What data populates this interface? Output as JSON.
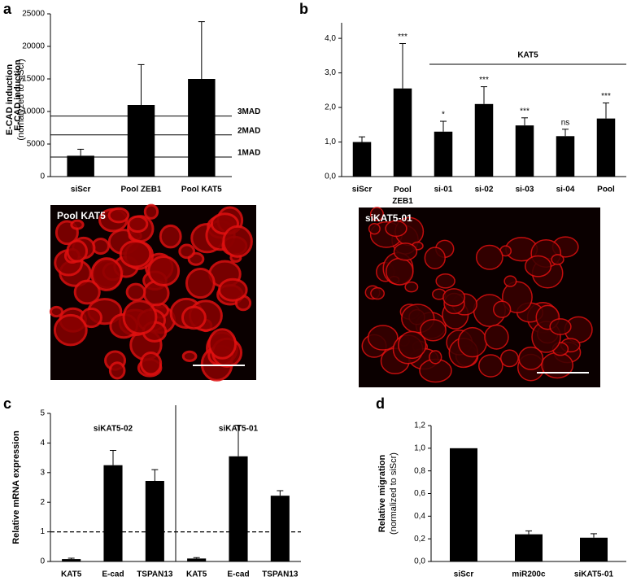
{
  "chart_data": [
    {
      "type": "bar",
      "panel": "a",
      "ylabel": "E-CAD induction",
      "categories": [
        "siScr",
        "Pool ZEB1",
        "Pool KAT5"
      ],
      "values": [
        3200,
        11000,
        15000
      ],
      "errors": [
        1000,
        6200,
        8800
      ],
      "color": "#000000",
      "ylim": [
        0,
        25000
      ],
      "yticks": [
        0,
        5000,
        10000,
        15000,
        20000,
        25000
      ],
      "hlines": [
        {
          "value": 3000,
          "label": "1MAD"
        },
        {
          "value": 6400,
          "label": "2MAD"
        },
        {
          "value": 9300,
          "label": "3MAD"
        }
      ]
    },
    {
      "type": "bar",
      "panel": "b",
      "ylabel": "E-CAD induction",
      "ylabel2": "(nomalyzed to siScr)",
      "categories": [
        "siScr",
        "Pool ZEB1",
        "si-01",
        "si-02",
        "si-03",
        "si-04",
        "Pool"
      ],
      "values": [
        1.0,
        2.55,
        1.3,
        2.1,
        1.48,
        1.17,
        1.68
      ],
      "errors": [
        0.15,
        1.3,
        0.3,
        0.5,
        0.22,
        0.2,
        0.45
      ],
      "value_labels": [
        null,
        "***",
        "*",
        "***",
        "***",
        "ns",
        "***"
      ],
      "color": "#000000",
      "ylim": [
        0,
        4.45
      ],
      "yticks": [
        {
          "value": 0,
          "label": "0,0"
        },
        {
          "value": 1,
          "label": "1,0"
        },
        {
          "value": 2,
          "label": "2,0"
        },
        {
          "value": 3,
          "label": "3,0"
        },
        {
          "value": 4,
          "label": "4,0"
        }
      ],
      "annotation": {
        "text": "KAT5",
        "span": [
          "si-01",
          "Pool"
        ]
      }
    },
    {
      "type": "bar",
      "panel": "c",
      "ylabel": "Relative mRNA expression",
      "categories": [
        "KAT5",
        "E-cad",
        "TSPAN13",
        "KAT5",
        "E-cad",
        "TSPAN13"
      ],
      "values": [
        0.08,
        3.25,
        2.72,
        0.1,
        3.55,
        2.22
      ],
      "errors": [
        0.03,
        0.5,
        0.38,
        0.03,
        1.05,
        0.17
      ],
      "color": "#000000",
      "ylim": [
        0,
        5
      ],
      "yticks": [
        0,
        1,
        2,
        3,
        4,
        5
      ],
      "hlines": [
        {
          "value": 1,
          "style": "dashed"
        }
      ],
      "groups": [
        {
          "label": "siKAT5-02",
          "size": 3
        },
        {
          "label": "siKAT5-01",
          "size": 3
        }
      ]
    },
    {
      "type": "bar",
      "panel": "d",
      "ylabel": "Relative migration",
      "ylabel2": "(normalized to siScr)",
      "categories": [
        "siScr",
        "miR200c",
        "siKAT5-01"
      ],
      "values": [
        1.0,
        0.24,
        0.21
      ],
      "errors": [
        null,
        0.03,
        0.035
      ],
      "color": "#000000",
      "ylim": [
        0,
        1.2
      ],
      "yticks": [
        {
          "value": 0,
          "label": "0,0"
        },
        {
          "value": 0.2,
          "label": "0,2"
        },
        {
          "value": 0.4,
          "label": "0,4"
        },
        {
          "value": 0.6,
          "label": "0,6"
        },
        {
          "value": 0.8,
          "label": "0,8"
        },
        {
          "value": 1.0,
          "label": "1,0"
        },
        {
          "value": 1.2,
          "label": "1,2"
        }
      ]
    }
  ],
  "images": [
    {
      "label": "Pool KAT5"
    },
    {
      "label": "siKAT5-01"
    }
  ]
}
